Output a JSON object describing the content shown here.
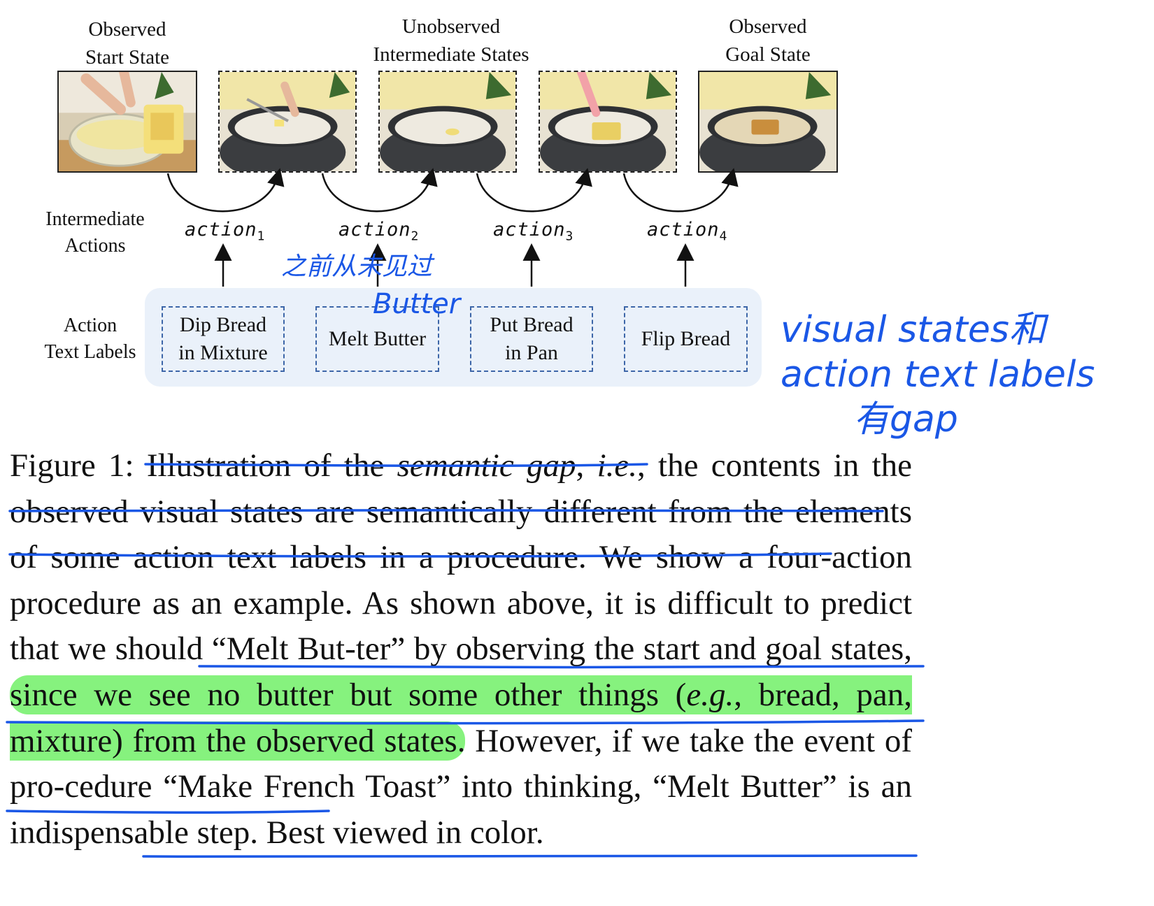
{
  "figure": {
    "headers": {
      "start": [
        "Observed",
        "Start State"
      ],
      "intermediate": [
        "Unobserved",
        "Intermediate States"
      ],
      "goal": [
        "Observed",
        "Goal State"
      ]
    },
    "row_labels": {
      "actions": [
        "Intermediate",
        "Actions"
      ],
      "text_labels": [
        "Action",
        "Text Labels"
      ]
    },
    "actions": [
      {
        "word": "action",
        "index": "1"
      },
      {
        "word": "action",
        "index": "2"
      },
      {
        "word": "action",
        "index": "3"
      },
      {
        "word": "action",
        "index": "4"
      }
    ],
    "action_text_labels": [
      [
        "Dip Bread",
        "in Mixture"
      ],
      [
        "Melt Butter"
      ],
      [
        "Put Bread",
        "in Pan"
      ],
      [
        "Flip Bread"
      ]
    ],
    "images": [
      "Observed start state: whisking mixture in bowl with bread",
      "Pan with butter being added",
      "Butter melting in pan",
      "Bread placed in pan",
      "Observed goal state: toast in pan"
    ]
  },
  "caption": {
    "label": "Figure 1:",
    "part1": " Illustration of the ",
    "semantic_gap": "semantic gap",
    "part2": ", ",
    "ie": "i.e.",
    "part3": ", the contents in the observed visual states are semantically different from the elements of some action text labels in a procedure. We show a four-action procedure as an example. As shown above, it is difficult to predict that we should “Melt But-ter” by observing the start and goal states, ",
    "hl1": "since we see no butter but some other things (",
    "eg": "e.g.",
    "hl2": ", bread, pan, mixture) from the observed states.",
    "part4": " However, if we take the event of pro-cedure “Make French Toast” into thinking, “Melt Butter” is an indispensable step. Best viewed in color."
  },
  "annotations": {
    "note_actions": "之前从未见过",
    "note_butter": "Butter",
    "note_right": [
      "visual states和",
      "action text labels",
      "有gap"
    ]
  },
  "colors": {
    "annotation": "#1a57e6",
    "highlight": "#86f27e",
    "panel": "#eaf1fa",
    "label_border": "#3d66a8"
  }
}
